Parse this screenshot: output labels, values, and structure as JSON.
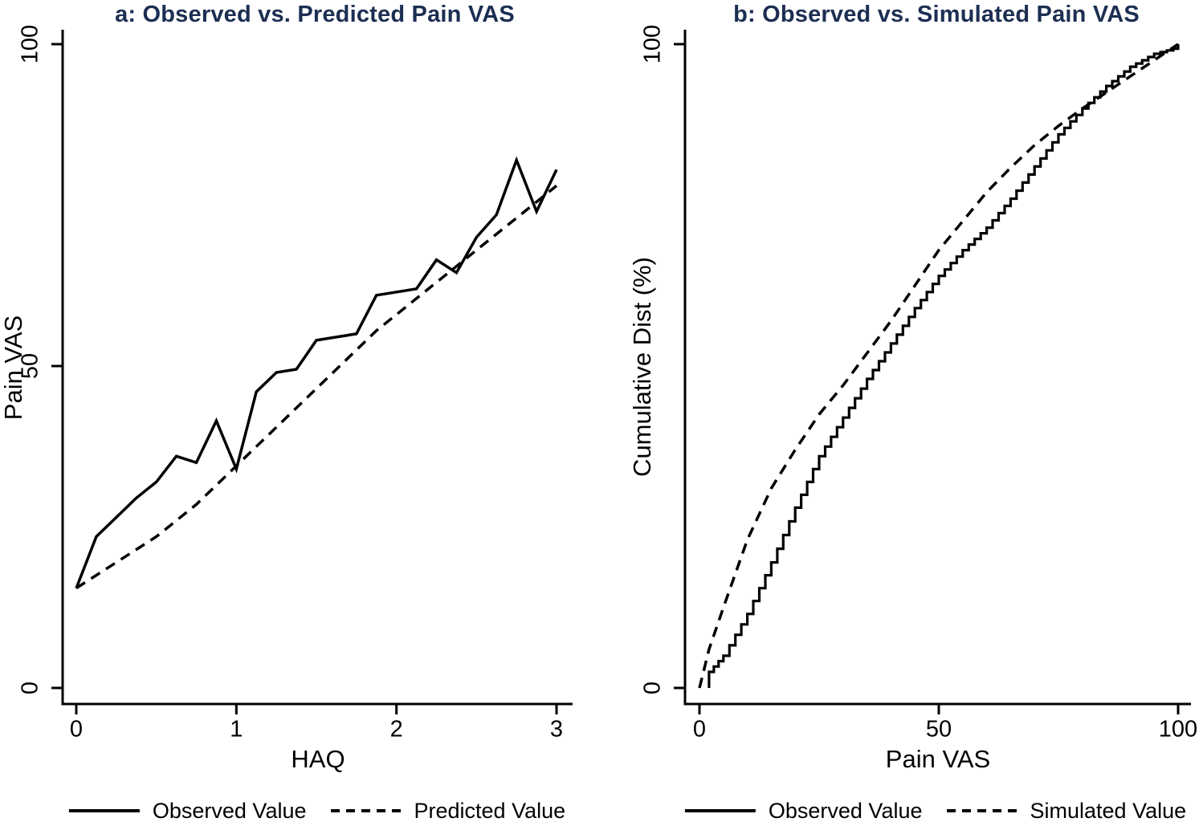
{
  "figure": {
    "background": "#ffffff",
    "title_color": "#1c2e52",
    "line_color": "#000000"
  },
  "chart_data": [
    {
      "id": "a",
      "type": "line",
      "title": "a: Observed vs. Predicted Pain VAS",
      "xlabel": "HAQ",
      "ylabel": "Pain VAS",
      "xlim": [
        0,
        3
      ],
      "ylim": [
        0,
        100
      ],
      "xticks": [
        0,
        1,
        2,
        3
      ],
      "yticks": [
        0,
        50,
        100
      ],
      "grid": false,
      "legend_position": "bottom",
      "x": [
        0,
        0.125,
        0.25,
        0.375,
        0.5,
        0.625,
        0.75,
        0.875,
        1,
        1.125,
        1.25,
        1.375,
        1.5,
        1.625,
        1.75,
        1.875,
        2,
        2.125,
        2.25,
        2.375,
        2.5,
        2.625,
        2.75,
        2.875,
        3
      ],
      "series": [
        {
          "name": "Observed Value",
          "style": "solid",
          "render": "line",
          "values": [
            15.5,
            23.5,
            26.5,
            29.5,
            32,
            36,
            35,
            41.5,
            34,
            46,
            49,
            49.5,
            54,
            54.5,
            55,
            61,
            61.5,
            62,
            66.5,
            64.5,
            70,
            73.5,
            82,
            74,
            80.5
          ]
        },
        {
          "name": "Predicted Value",
          "style": "dashed",
          "render": "line",
          "values": [
            15.5,
            17.5,
            19.5,
            21.5,
            23.5,
            26,
            28.5,
            31.5,
            34.5,
            37.5,
            40.5,
            43.5,
            46.5,
            49.5,
            52.5,
            55.5,
            58,
            60.5,
            63,
            65.5,
            68,
            70.5,
            73,
            75.5,
            78
          ]
        }
      ]
    },
    {
      "id": "b",
      "type": "line",
      "title": "b: Observed vs. Simulated Pain VAS",
      "xlabel": "Pain VAS",
      "ylabel": "Cumulative Dist (%)",
      "xlim": [
        0,
        100
      ],
      "ylim": [
        0,
        100
      ],
      "xticks": [
        0,
        50,
        100
      ],
      "yticks": [
        0,
        100
      ],
      "grid": false,
      "legend_position": "bottom",
      "series": [
        {
          "name": "Observed Value",
          "style": "solid",
          "render": "step",
          "x": [
            2,
            5,
            10,
            15,
            20,
            25,
            30,
            35,
            40,
            45,
            50,
            55,
            60,
            65,
            70,
            75,
            80,
            85,
            90,
            95,
            99,
            100
          ],
          "values": [
            2.5,
            5,
            11.5,
            19.5,
            28,
            36,
            42,
            48,
            53.5,
            59,
            64,
            68,
            71.5,
            76,
            81,
            86,
            90,
            93.5,
            96.5,
            98.5,
            99.3,
            100
          ]
        },
        {
          "name": "Simulated Value",
          "style": "dashed",
          "render": "line",
          "x": [
            0,
            2,
            5,
            10,
            15,
            20,
            25,
            30,
            35,
            40,
            45,
            50,
            55,
            60,
            65,
            70,
            75,
            80,
            85,
            90,
            95,
            100
          ],
          "values": [
            0,
            6,
            12.5,
            23,
            31,
            37,
            42.5,
            47,
            52,
            57,
            62.5,
            68,
            72.5,
            77,
            80.8,
            84.3,
            87.3,
            90,
            92.5,
            95,
            97.5,
            100
          ]
        }
      ]
    }
  ]
}
